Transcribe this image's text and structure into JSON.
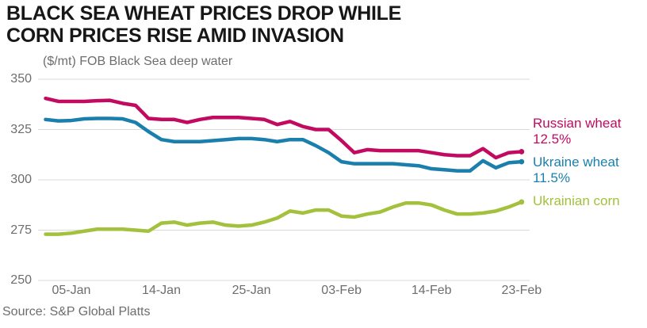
{
  "header": {
    "title_line1": "BLACK SEA WHEAT PRICES DROP WHILE",
    "title_line2": "CORN PRICES RISE AMID INVASION"
  },
  "subtitle": "($/mt) FOB Black Sea deep water",
  "footer": {
    "source": "Source: S&P Global Platts"
  },
  "colors": {
    "russian_wheat": "#c20a61",
    "ukraine_wheat": "#1a7fad",
    "ukrainian_corn": "#a3c13c",
    "gridline": "#d9d9d9",
    "axis_text": "#6d6d6d",
    "title_text": "#171717"
  },
  "chart_data": {
    "type": "line",
    "title": "BLACK SEA WHEAT PRICES DROP WHILE CORN PRICES RISE AMID INVASION",
    "ylabel_note": "($/mt) FOB Black Sea deep water",
    "grid": "horizontal",
    "legend_position": "right-end-labels",
    "ylim": [
      250,
      350
    ],
    "y_ticks": [
      250,
      275,
      300,
      325,
      350
    ],
    "x_tick_labels": [
      "05-Jan",
      "14-Jan",
      "25-Jan",
      "03-Feb",
      "14-Feb",
      "23-Feb"
    ],
    "x_tick_indices": [
      2,
      9,
      16,
      23,
      30,
      37
    ],
    "x": [
      "03-Jan",
      "04-Jan",
      "05-Jan",
      "06-Jan",
      "07-Jan",
      "10-Jan",
      "11-Jan",
      "12-Jan",
      "13-Jan",
      "14-Jan",
      "17-Jan",
      "18-Jan",
      "19-Jan",
      "20-Jan",
      "21-Jan",
      "24-Jan",
      "25-Jan",
      "26-Jan",
      "27-Jan",
      "28-Jan",
      "31-Jan",
      "01-Feb",
      "02-Feb",
      "03-Feb",
      "04-Feb",
      "07-Feb",
      "08-Feb",
      "09-Feb",
      "10-Feb",
      "11-Feb",
      "14-Feb",
      "15-Feb",
      "16-Feb",
      "17-Feb",
      "18-Feb",
      "21-Feb",
      "22-Feb",
      "23-Feb"
    ],
    "series": [
      {
        "name": "Russian wheat",
        "annotation": "12.5%",
        "color": "#c20a61",
        "values": [
          340.5,
          339,
          339,
          339,
          339.3,
          339.5,
          338,
          337,
          330.5,
          330,
          330,
          328.5,
          330,
          331,
          331,
          331,
          330.5,
          330,
          327.5,
          329,
          326.5,
          325,
          325,
          319.5,
          313.5,
          315,
          314.5,
          314.5,
          314.5,
          314.5,
          313.5,
          312.5,
          312,
          312,
          315.5,
          311,
          313.5,
          314
        ]
      },
      {
        "name": "Ukraine wheat",
        "annotation": "11.5%",
        "color": "#1a7fad",
        "values": [
          330,
          329.3,
          329.5,
          330.3,
          330.5,
          330.5,
          330.3,
          328.5,
          324,
          320,
          319,
          319,
          319,
          319.5,
          320,
          320.5,
          320.5,
          320,
          319,
          320,
          320,
          317,
          313.5,
          309,
          308,
          308,
          308,
          308,
          307.5,
          307,
          305.5,
          305,
          304.5,
          304.5,
          309.5,
          306,
          308.5,
          309
        ]
      },
      {
        "name": "Ukrainian corn",
        "annotation": "",
        "color": "#a3c13c",
        "values": [
          273,
          273,
          273.5,
          274.5,
          275.5,
          275.5,
          275.5,
          275,
          274.5,
          278.5,
          279,
          277.5,
          278.5,
          279,
          277.5,
          277,
          277.5,
          279,
          281,
          284.5,
          283.5,
          285,
          285,
          282,
          281.5,
          283,
          284,
          286.5,
          288.5,
          288.5,
          287.5,
          285,
          283,
          283,
          283.5,
          284.5,
          286.5,
          289
        ]
      }
    ]
  }
}
